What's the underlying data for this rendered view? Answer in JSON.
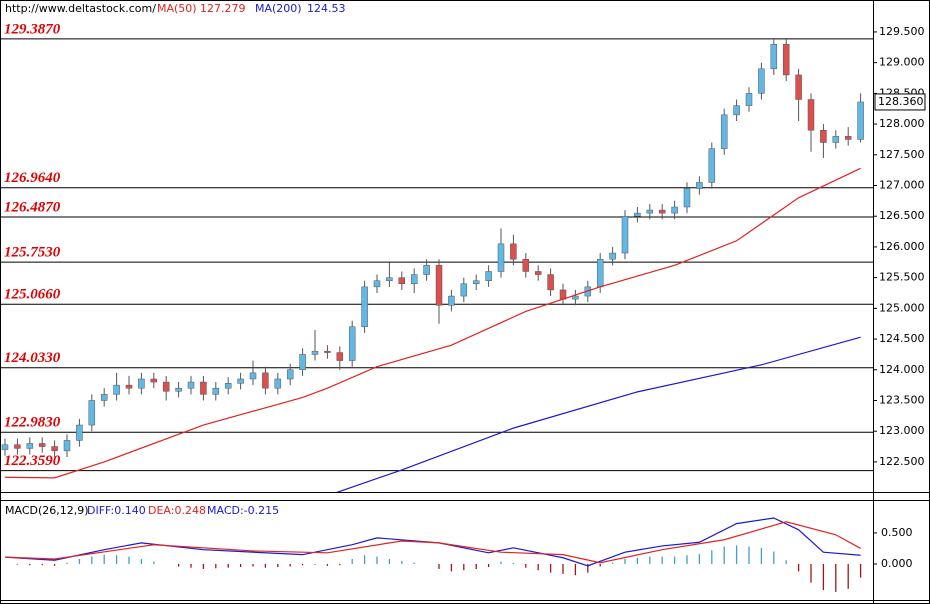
{
  "chart_data": {
    "type": "candlestick",
    "source": "http://www.deltastock.com/",
    "categories": [
      null,
      null,
      null,
      null,
      null,
      null,
      null,
      null,
      null,
      null,
      null,
      null,
      null,
      null,
      null,
      null,
      null,
      null,
      null,
      null,
      null,
      null,
      null,
      null,
      null,
      null,
      null,
      null,
      null,
      null,
      null,
      null,
      null,
      null,
      null,
      null,
      null,
      null,
      null,
      null,
      null,
      null,
      null,
      null,
      null,
      null,
      null,
      null,
      null,
      null,
      null,
      null,
      null,
      null,
      null,
      null,
      null,
      null,
      null,
      null,
      null,
      null,
      null,
      null,
      null,
      null,
      null,
      null,
      null,
      null
    ],
    "open": [
      122.7,
      122.78,
      122.72,
      122.8,
      122.75,
      122.68,
      122.85,
      123.1,
      123.5,
      123.6,
      123.75,
      123.7,
      123.85,
      123.8,
      123.65,
      123.7,
      123.8,
      123.6,
      123.7,
      123.78,
      123.85,
      123.95,
      123.7,
      123.85,
      124.0,
      124.25,
      124.3,
      124.28,
      124.15,
      124.7,
      125.35,
      125.45,
      125.5,
      125.4,
      125.55,
      125.7,
      125.05,
      125.2,
      125.4,
      125.45,
      125.6,
      126.05,
      125.8,
      125.6,
      125.55,
      125.3,
      125.15,
      125.2,
      125.35,
      125.8,
      125.9,
      126.5,
      126.55,
      126.6,
      126.55,
      126.65,
      126.95,
      127.05,
      127.6,
      128.15,
      128.3,
      128.5,
      128.9,
      129.3,
      128.8,
      128.4,
      127.9,
      127.7,
      127.8,
      127.75
    ],
    "high": [
      122.88,
      122.88,
      122.9,
      122.9,
      122.85,
      122.95,
      123.2,
      123.6,
      123.7,
      123.95,
      123.9,
      123.95,
      123.95,
      123.9,
      123.8,
      123.9,
      123.9,
      123.8,
      123.88,
      123.95,
      124.15,
      124.05,
      123.95,
      124.1,
      124.35,
      124.65,
      124.4,
      124.38,
      124.8,
      125.45,
      125.55,
      125.75,
      125.6,
      125.65,
      125.8,
      125.8,
      125.3,
      125.5,
      125.55,
      125.7,
      126.3,
      126.2,
      125.9,
      125.7,
      125.65,
      125.4,
      125.3,
      125.45,
      125.9,
      126.0,
      126.6,
      126.65,
      126.7,
      126.7,
      126.75,
      127.05,
      127.15,
      127.7,
      128.25,
      128.4,
      128.6,
      129.0,
      129.4,
      129.4,
      128.9,
      128.5,
      128.0,
      127.9,
      127.95,
      128.5
    ],
    "low": [
      122.6,
      122.62,
      122.62,
      122.65,
      122.58,
      122.58,
      122.75,
      123.0,
      123.4,
      123.5,
      123.6,
      123.6,
      123.7,
      123.5,
      123.55,
      123.6,
      123.5,
      123.5,
      123.6,
      123.68,
      123.75,
      123.6,
      123.6,
      123.75,
      123.9,
      124.15,
      124.18,
      124.0,
      124.05,
      124.6,
      125.25,
      125.35,
      125.3,
      125.25,
      125.45,
      124.75,
      124.95,
      125.1,
      125.3,
      125.35,
      125.5,
      125.7,
      125.5,
      125.45,
      125.2,
      125.05,
      125.05,
      125.1,
      125.25,
      125.7,
      125.8,
      126.4,
      126.45,
      126.45,
      126.45,
      126.55,
      126.85,
      126.95,
      127.5,
      128.05,
      128.2,
      128.4,
      128.8,
      128.7,
      128.05,
      127.55,
      127.45,
      127.6,
      127.65,
      127.7
    ],
    "close": [
      122.78,
      122.72,
      122.8,
      122.75,
      122.68,
      122.85,
      123.1,
      123.5,
      123.6,
      123.75,
      123.7,
      123.85,
      123.8,
      123.65,
      123.7,
      123.8,
      123.6,
      123.7,
      123.78,
      123.85,
      123.95,
      123.7,
      123.85,
      124.0,
      124.25,
      124.3,
      124.28,
      124.15,
      124.7,
      125.35,
      125.45,
      125.5,
      125.4,
      125.55,
      125.7,
      125.05,
      125.2,
      125.4,
      125.45,
      125.6,
      126.05,
      125.8,
      125.6,
      125.55,
      125.3,
      125.15,
      125.2,
      125.35,
      125.8,
      125.9,
      126.5,
      126.55,
      126.6,
      126.55,
      126.65,
      126.95,
      127.05,
      127.6,
      128.15,
      128.3,
      128.5,
      128.9,
      129.3,
      128.8,
      128.4,
      127.9,
      127.7,
      127.8,
      127.75,
      128.36
    ],
    "up_color": "#62b8e4",
    "down_color": "#d9504f",
    "ylim": [
      122.01,
      130.02
    ],
    "yticks": [
      {
        "value": 122.5,
        "label": "122.500"
      },
      {
        "value": 123,
        "label": "123.000"
      },
      {
        "value": 123.5,
        "label": "123.500"
      },
      {
        "value": 124,
        "label": "124.000"
      },
      {
        "value": 124.5,
        "label": "124.500"
      },
      {
        "value": 125,
        "label": "125.000"
      },
      {
        "value": 125.5,
        "label": "125.500"
      },
      {
        "value": 126,
        "label": "126.000"
      },
      {
        "value": 126.5,
        "label": "126.500"
      },
      {
        "value": 127,
        "label": "127.000"
      },
      {
        "value": 127.5,
        "label": "127.500"
      },
      {
        "value": 128,
        "label": "128.000"
      },
      {
        "value": 128.5,
        "label": "128.500"
      },
      {
        "value": 129,
        "label": "129.000"
      },
      {
        "value": 129.5,
        "label": "129.500"
      }
    ],
    "last_price": {
      "value": 128.36,
      "label": "128.360"
    },
    "levels": [
      {
        "value": 129.387,
        "label": "129.3870"
      },
      {
        "value": 126.964,
        "label": "126.9640"
      },
      {
        "value": 126.487,
        "label": "126.4870"
      },
      {
        "value": 125.753,
        "label": "125.7530"
      },
      {
        "value": 125.066,
        "label": "125.0660"
      },
      {
        "value": 124.033,
        "label": "124.0330"
      },
      {
        "value": 122.983,
        "label": "122.9830"
      },
      {
        "value": 122.359,
        "label": "122.3590"
      }
    ],
    "series": [
      {
        "name": "MA(50)",
        "last_value": 127.279,
        "color": "#e32222",
        "x": [
          0,
          4,
          8,
          16,
          24,
          26,
          30,
          36,
          42,
          48,
          54,
          59,
          64,
          69
        ],
        "values": [
          122.25,
          122.24,
          122.5,
          123.1,
          123.55,
          123.7,
          124.05,
          124.4,
          124.95,
          125.35,
          125.7,
          126.1,
          126.8,
          127.28
        ]
      },
      {
        "name": "MA(200)",
        "last_value": 124.53,
        "color": "#1a1ad0",
        "x": [
          26,
          32,
          41,
          51,
          61,
          69
        ],
        "values": [
          121.95,
          122.37,
          123.05,
          123.64,
          124.08,
          124.53
        ]
      }
    ],
    "macd": {
      "title": "MACD(26,12,9)",
      "ylim": [
        -0.58,
        1.03
      ],
      "yticks": [
        {
          "value": 0,
          "label": "0.000"
        },
        {
          "value": 0.5,
          "label": "0.500"
        }
      ],
      "lines": [
        {
          "name": "DIFF:0.140",
          "color": "#1a1ad0",
          "x": [
            0,
            4,
            8,
            11,
            16,
            24,
            28,
            30,
            35,
            39,
            41,
            45,
            47,
            50,
            53,
            56,
            59,
            62,
            64,
            66,
            69
          ],
          "values": [
            0.11,
            0.06,
            0.23,
            0.34,
            0.23,
            0.15,
            0.31,
            0.42,
            0.34,
            0.18,
            0.26,
            0.1,
            -0.03,
            0.19,
            0.29,
            0.35,
            0.65,
            0.74,
            0.55,
            0.19,
            0.14
          ]
        },
        {
          "name": "DEA:0.248",
          "color": "#e32222",
          "x": [
            0,
            4,
            12,
            20,
            26,
            32,
            35,
            40,
            45,
            48,
            53,
            58,
            63,
            67,
            69
          ],
          "values": [
            0.11,
            0.08,
            0.31,
            0.21,
            0.18,
            0.37,
            0.34,
            0.19,
            0.15,
            0.02,
            0.23,
            0.39,
            0.68,
            0.47,
            0.25
          ]
        }
      ],
      "histogram": {
        "name": "MACD:-0.215",
        "color": "#3f9fd2",
        "down_color": "#a31515",
        "values": [
          0.0,
          -0.01,
          -0.02,
          -0.02,
          -0.03,
          0.02,
          0.08,
          0.12,
          0.15,
          0.14,
          0.12,
          0.08,
          0.04,
          0.0,
          -0.04,
          -0.06,
          -0.08,
          -0.07,
          -0.06,
          -0.05,
          -0.04,
          -0.06,
          -0.05,
          -0.04,
          -0.02,
          -0.01,
          -0.03,
          -0.02,
          0.08,
          0.14,
          0.12,
          0.08,
          0.05,
          0.02,
          0.0,
          -0.08,
          -0.12,
          -0.1,
          -0.08,
          -0.05,
          0.04,
          0.02,
          -0.06,
          -0.1,
          -0.14,
          -0.16,
          -0.18,
          -0.14,
          -0.04,
          0.02,
          0.08,
          0.1,
          0.12,
          0.12,
          0.12,
          0.14,
          0.16,
          0.22,
          0.28,
          0.3,
          0.28,
          0.26,
          0.2,
          0.06,
          -0.12,
          -0.3,
          -0.42,
          -0.45,
          -0.4,
          -0.22
        ]
      }
    }
  }
}
